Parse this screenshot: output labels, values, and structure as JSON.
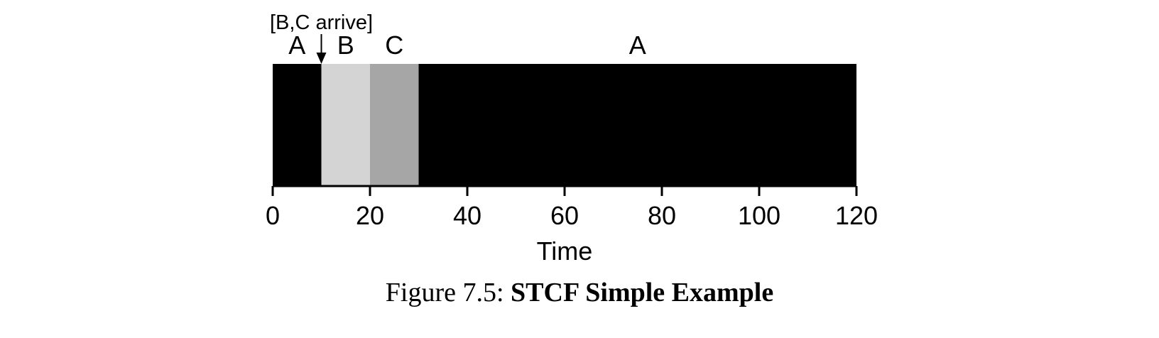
{
  "chart_data": {
    "type": "gantt",
    "segments": [
      {
        "label": "A",
        "start": 0,
        "end": 10,
        "color": "#000000"
      },
      {
        "label": "B",
        "start": 10,
        "end": 20,
        "color": "#d4d4d4"
      },
      {
        "label": "C",
        "start": 20,
        "end": 30,
        "color": "#a6a6a6"
      },
      {
        "label": "A",
        "start": 30,
        "end": 120,
        "color": "#000000"
      }
    ],
    "annotation": {
      "text": "[B,C arrive]",
      "x": 10
    },
    "xlim": [
      0,
      120
    ],
    "xticks": [
      0,
      20,
      40,
      60,
      80,
      100,
      120
    ],
    "xlabel": "Time"
  },
  "caption": {
    "prefix": "Figure 7.5: ",
    "title": "STCF Simple Example"
  }
}
